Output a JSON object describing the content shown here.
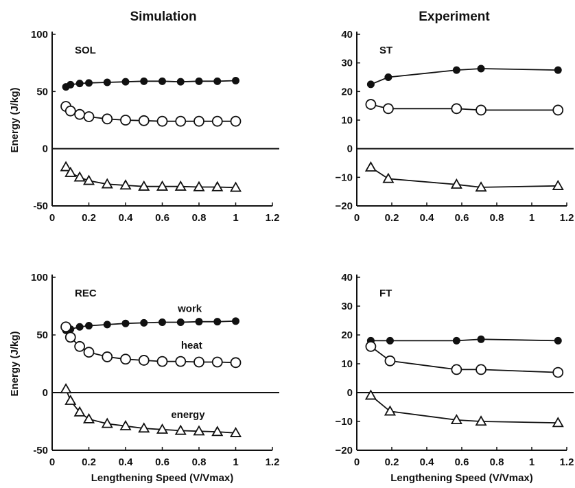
{
  "titles": {
    "left": "Simulation",
    "right": "Experiment"
  },
  "chart_data": [
    {
      "type": "line",
      "panel_label": "SOL",
      "ylabel": "Energy (J/kg)",
      "xlabel": "",
      "xlim": [
        0,
        1.2
      ],
      "ylim": [
        -50,
        100
      ],
      "xticks": [
        "0",
        "0.2",
        "0.4",
        "0.6",
        "0.8",
        "1",
        "1.2"
      ],
      "yticks": [
        "-50",
        "0",
        "50",
        "100"
      ],
      "series": [
        {
          "marker": "filled-circle",
          "points": [
            [
              0.075,
              54
            ],
            [
              0.1,
              56
            ],
            [
              0.15,
              57
            ],
            [
              0.2,
              57.5
            ],
            [
              0.3,
              58
            ],
            [
              0.4,
              58.5
            ],
            [
              0.5,
              59
            ],
            [
              0.6,
              59
            ],
            [
              0.7,
              58.5
            ],
            [
              0.8,
              59
            ],
            [
              0.9,
              59
            ],
            [
              1.0,
              59.5
            ]
          ]
        },
        {
          "marker": "open-circle",
          "points": [
            [
              0.075,
              37
            ],
            [
              0.1,
              33
            ],
            [
              0.15,
              30
            ],
            [
              0.2,
              28
            ],
            [
              0.3,
              26
            ],
            [
              0.4,
              25
            ],
            [
              0.5,
              24.5
            ],
            [
              0.6,
              24
            ],
            [
              0.7,
              24
            ],
            [
              0.8,
              24
            ],
            [
              0.9,
              24
            ],
            [
              1.0,
              24
            ]
          ]
        },
        {
          "marker": "open-triangle",
          "points": [
            [
              0.075,
              -16
            ],
            [
              0.1,
              -21
            ],
            [
              0.15,
              -25
            ],
            [
              0.2,
              -28
            ],
            [
              0.3,
              -31
            ],
            [
              0.4,
              -32
            ],
            [
              0.5,
              -33
            ],
            [
              0.6,
              -33
            ],
            [
              0.7,
              -33
            ],
            [
              0.8,
              -33.5
            ],
            [
              0.9,
              -33.5
            ],
            [
              1.0,
              -34
            ]
          ]
        }
      ],
      "series_labels": []
    },
    {
      "type": "line",
      "panel_label": "ST",
      "ylabel": "",
      "xlabel": "",
      "xlim": [
        0,
        1.2
      ],
      "ylim": [
        -20,
        40
      ],
      "xticks": [
        "0",
        "0.2",
        "0.4",
        "0.6",
        "0.8",
        "1",
        "1.2"
      ],
      "yticks": [
        "−20",
        "−10",
        "0",
        "10",
        "20",
        "30",
        "40"
      ],
      "series": [
        {
          "marker": "filled-circle",
          "points": [
            [
              0.08,
              22.5
            ],
            [
              0.18,
              25
            ],
            [
              0.57,
              27.5
            ],
            [
              0.71,
              28
            ],
            [
              1.15,
              27.5
            ]
          ]
        },
        {
          "marker": "open-circle",
          "points": [
            [
              0.08,
              15.5
            ],
            [
              0.18,
              14
            ],
            [
              0.57,
              14
            ],
            [
              0.71,
              13.5
            ],
            [
              1.15,
              13.5
            ]
          ]
        },
        {
          "marker": "open-triangle",
          "points": [
            [
              0.08,
              -6.5
            ],
            [
              0.18,
              -10.5
            ],
            [
              0.57,
              -12.5
            ],
            [
              0.71,
              -13.5
            ],
            [
              1.15,
              -13
            ]
          ]
        }
      ],
      "series_labels": []
    },
    {
      "type": "line",
      "panel_label": "REC",
      "ylabel": "Energy (J/kg)",
      "xlabel": "Lengthening Speed (V/Vmax)",
      "xlim": [
        0,
        1.2
      ],
      "ylim": [
        -50,
        100
      ],
      "xticks": [
        "0",
        "0.2",
        "0.4",
        "0.6",
        "0.8",
        "1",
        "1.2"
      ],
      "yticks": [
        "-50",
        "0",
        "50",
        "100"
      ],
      "series": [
        {
          "name": "work",
          "marker": "filled-circle",
          "points": [
            [
              0.075,
              54
            ],
            [
              0.1,
              55
            ],
            [
              0.15,
              57
            ],
            [
              0.2,
              58
            ],
            [
              0.3,
              59
            ],
            [
              0.4,
              60
            ],
            [
              0.5,
              60.5
            ],
            [
              0.6,
              61
            ],
            [
              0.7,
              61
            ],
            [
              0.8,
              61.5
            ],
            [
              0.9,
              61.5
            ],
            [
              1.0,
              62
            ]
          ]
        },
        {
          "name": "heat",
          "marker": "open-circle",
          "points": [
            [
              0.075,
              57
            ],
            [
              0.1,
              48
            ],
            [
              0.15,
              40
            ],
            [
              0.2,
              35
            ],
            [
              0.3,
              31
            ],
            [
              0.4,
              29
            ],
            [
              0.5,
              28
            ],
            [
              0.6,
              27
            ],
            [
              0.7,
              27
            ],
            [
              0.8,
              26.5
            ],
            [
              0.9,
              26.5
            ],
            [
              1.0,
              26
            ]
          ]
        },
        {
          "name": "energy",
          "marker": "open-triangle",
          "points": [
            [
              0.075,
              3
            ],
            [
              0.1,
              -7
            ],
            [
              0.15,
              -17
            ],
            [
              0.2,
              -23
            ],
            [
              0.3,
              -27
            ],
            [
              0.4,
              -29
            ],
            [
              0.5,
              -31
            ],
            [
              0.6,
              -32
            ],
            [
              0.7,
              -33
            ],
            [
              0.8,
              -33.5
            ],
            [
              0.9,
              -34
            ],
            [
              1.0,
              -35
            ]
          ]
        }
      ],
      "series_labels": [
        {
          "text": "work",
          "x": 0.75,
          "y": 70
        },
        {
          "text": "heat",
          "x": 0.76,
          "y": 38
        },
        {
          "text": "energy",
          "x": 0.74,
          "y": -22
        }
      ]
    },
    {
      "type": "line",
      "panel_label": "FT",
      "ylabel": "",
      "xlabel": "Lengthening Speed (V/Vmax)",
      "xlim": [
        0,
        1.2
      ],
      "ylim": [
        -20,
        40
      ],
      "xticks": [
        "0",
        "0.2",
        "0.4",
        "0.6",
        "0.8",
        "1",
        "1.2"
      ],
      "yticks": [
        "−20",
        "−10",
        "0",
        "10",
        "20",
        "30",
        "40"
      ],
      "series": [
        {
          "marker": "filled-circle",
          "points": [
            [
              0.08,
              18
            ],
            [
              0.19,
              18
            ],
            [
              0.57,
              18
            ],
            [
              0.71,
              18.5
            ],
            [
              1.15,
              18
            ]
          ]
        },
        {
          "marker": "open-circle",
          "points": [
            [
              0.08,
              16
            ],
            [
              0.19,
              11
            ],
            [
              0.57,
              8
            ],
            [
              0.71,
              8
            ],
            [
              1.15,
              7
            ]
          ]
        },
        {
          "marker": "open-triangle",
          "points": [
            [
              0.08,
              -1
            ],
            [
              0.19,
              -6.5
            ],
            [
              0.57,
              -9.5
            ],
            [
              0.71,
              -10
            ],
            [
              1.15,
              -10.5
            ]
          ]
        }
      ],
      "series_labels": []
    }
  ]
}
